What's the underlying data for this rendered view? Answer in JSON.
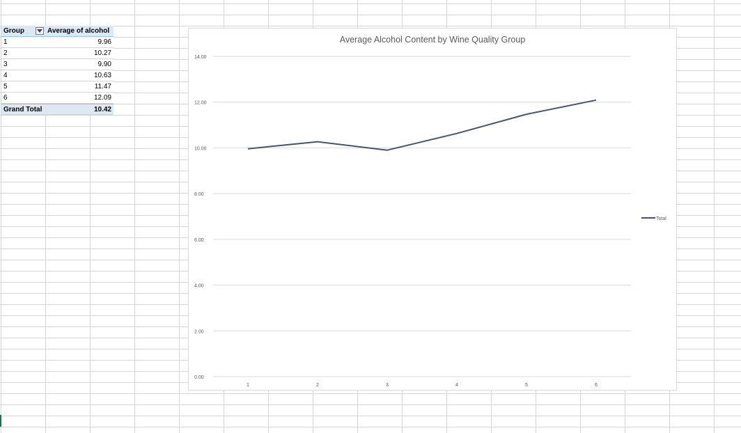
{
  "pivot": {
    "header": {
      "group_label": "Group",
      "value_label": "Average of alcohol"
    },
    "rows": [
      {
        "group": "1",
        "value": "9.96"
      },
      {
        "group": "2",
        "value": "10.27"
      },
      {
        "group": "3",
        "value": "9.90"
      },
      {
        "group": "4",
        "value": "10.63"
      },
      {
        "group": "5",
        "value": "11.47"
      },
      {
        "group": "6",
        "value": "12.09"
      }
    ],
    "total": {
      "label": "Grand Total",
      "value": "10.42"
    }
  },
  "chart_data": {
    "type": "line",
    "title": "Average Alcohol Content by Wine Quality Group",
    "categories": [
      "1",
      "2",
      "3",
      "4",
      "5",
      "6"
    ],
    "series": [
      {
        "name": "Total",
        "values": [
          9.96,
          10.27,
          9.9,
          10.63,
          11.47,
          12.09
        ],
        "color": "#44546a"
      }
    ],
    "y_ticks": [
      "0.00",
      "2.00",
      "4.00",
      "6.00",
      "8.00",
      "10.00",
      "12.00",
      "14.00"
    ],
    "ylim": [
      0,
      14
    ],
    "grid": true,
    "legend_position": "right"
  }
}
